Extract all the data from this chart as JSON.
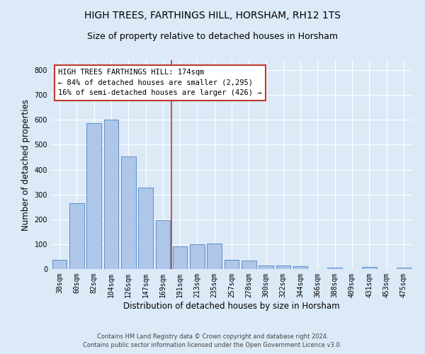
{
  "title": "HIGH TREES, FARTHINGS HILL, HORSHAM, RH12 1TS",
  "subtitle": "Size of property relative to detached houses in Horsham",
  "xlabel": "Distribution of detached houses by size in Horsham",
  "ylabel": "Number of detached properties",
  "bar_labels": [
    "38sqm",
    "60sqm",
    "82sqm",
    "104sqm",
    "126sqm",
    "147sqm",
    "169sqm",
    "191sqm",
    "213sqm",
    "235sqm",
    "257sqm",
    "278sqm",
    "300sqm",
    "322sqm",
    "344sqm",
    "366sqm",
    "388sqm",
    "409sqm",
    "431sqm",
    "453sqm",
    "475sqm"
  ],
  "bar_values": [
    38,
    265,
    587,
    601,
    452,
    328,
    196,
    90,
    100,
    103,
    38,
    35,
    15,
    14,
    11,
    0,
    7,
    0,
    8,
    0,
    7
  ],
  "bar_color": "#aec6e8",
  "bar_edge_color": "#5b8fc9",
  "background_color": "#dce9f7",
  "grid_color": "#ffffff",
  "vline_x_index": 6.5,
  "vline_color": "#c0392b",
  "annotation_text": "HIGH TREES FARTHINGS HILL: 174sqm\n← 84% of detached houses are smaller (2,295)\n16% of semi-detached houses are larger (426) →",
  "annotation_box_color": "#ffffff",
  "annotation_box_edge_color": "#c0392b",
  "footnote1": "Contains HM Land Registry data © Crown copyright and database right 2024.",
  "footnote2": "Contains public sector information licensed under the Open Government Licence v3.0.",
  "ylim": [
    0,
    840
  ],
  "title_fontsize": 10,
  "subtitle_fontsize": 9,
  "xlabel_fontsize": 8.5,
  "ylabel_fontsize": 8.5,
  "tick_fontsize": 7,
  "annotation_fontsize": 7.5,
  "footnote_fontsize": 6
}
